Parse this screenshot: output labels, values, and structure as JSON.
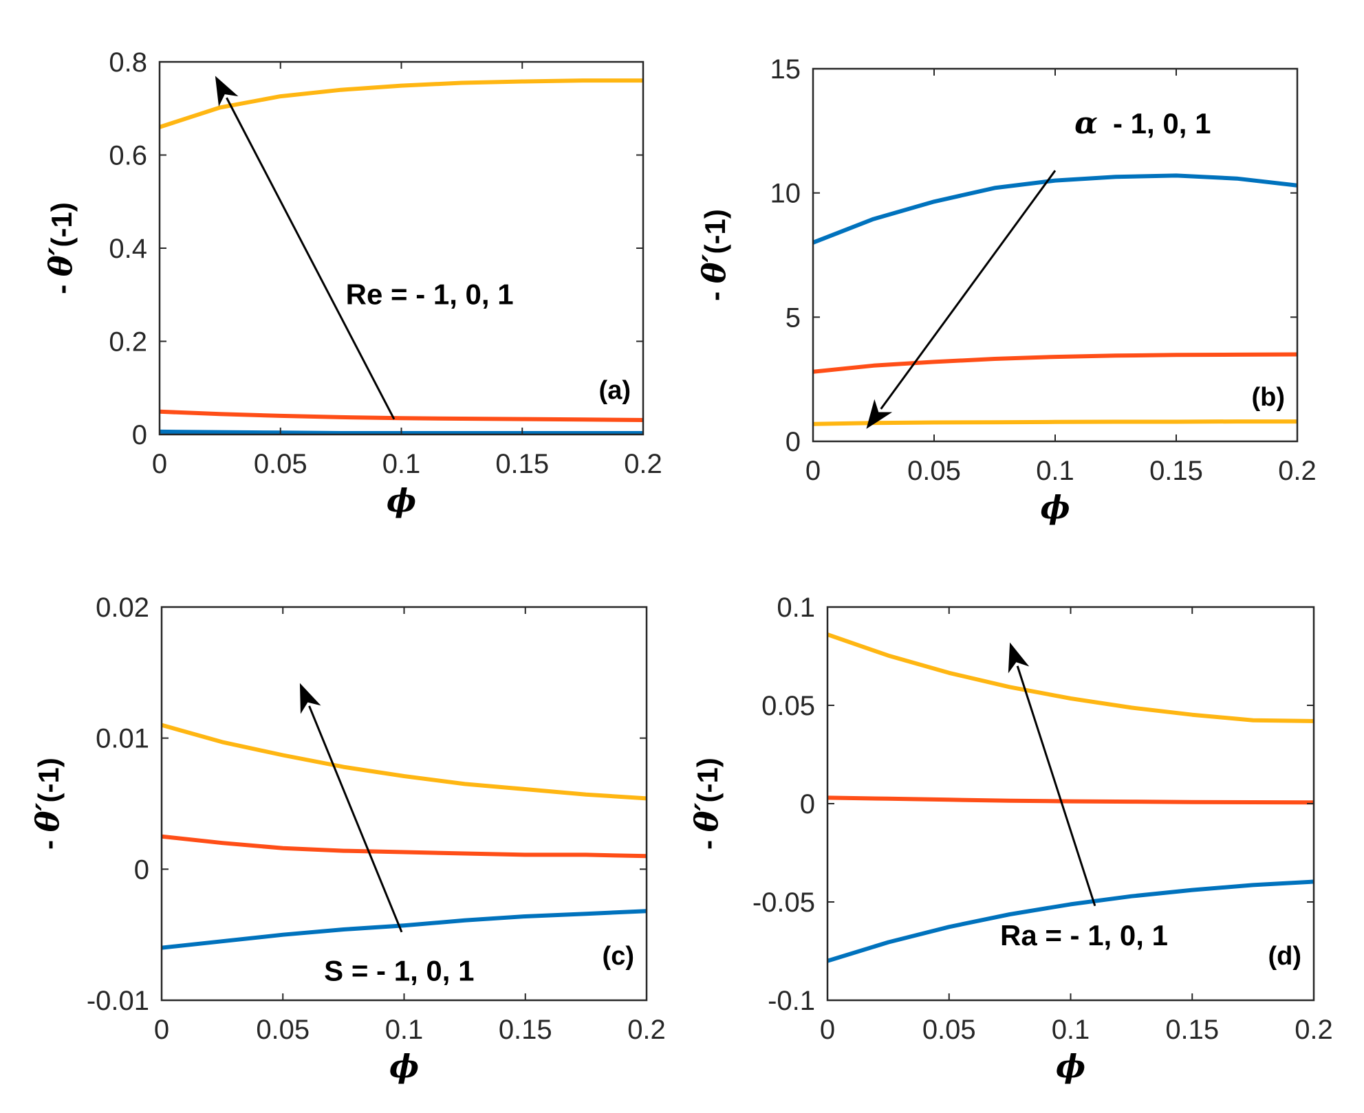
{
  "colors": {
    "series1": "#0072BD",
    "series2": "#FF4E17",
    "series3": "#FFB612"
  },
  "chart_data": [
    {
      "id": "a",
      "type": "line",
      "panel_label": "(a)",
      "xlabel": "ϕ",
      "ylabel_prefix": "- ",
      "ylabel_symbol": "θ′",
      "ylabel_suffix": "(-1)",
      "xlim": [
        0,
        0.2
      ],
      "ylim": [
        0,
        0.8
      ],
      "xticks": [
        0,
        0.05,
        0.1,
        0.15,
        0.2
      ],
      "xtick_labels": [
        "0",
        "0.05",
        "0.1",
        "0.15",
        "0.2"
      ],
      "yticks": [
        0,
        0.2,
        0.4,
        0.6,
        0.8
      ],
      "ytick_labels": [
        "0",
        "0.2",
        "0.4",
        "0.6",
        "0.8"
      ],
      "x": [
        0,
        0.025,
        0.05,
        0.075,
        0.1,
        0.125,
        0.15,
        0.175,
        0.2
      ],
      "series": [
        {
          "name": "Re = -1",
          "color": "series1",
          "values": [
            0.006,
            0.005,
            0.004,
            0.003,
            0.003,
            0.003,
            0.003,
            0.003,
            0.003
          ]
        },
        {
          "name": "Re = 0",
          "color": "series2",
          "values": [
            0.049,
            0.044,
            0.04,
            0.037,
            0.035,
            0.034,
            0.033,
            0.032,
            0.031
          ]
        },
        {
          "name": "Re = 1",
          "color": "series3",
          "values": [
            0.66,
            0.702,
            0.726,
            0.74,
            0.749,
            0.755,
            0.758,
            0.76,
            0.76
          ]
        }
      ],
      "annotation": {
        "text": "Re = - 1, 0, 1",
        "arrow": {
          "from": [
            0.097,
            0.033
          ],
          "to": [
            0.023,
            0.77
          ]
        },
        "text_pos": [
          0.077,
          0.28
        ]
      }
    },
    {
      "id": "b",
      "type": "line",
      "panel_label": "(b)",
      "xlabel": "ϕ",
      "ylabel_prefix": "- ",
      "ylabel_symbol": "θ′",
      "ylabel_suffix": "(-1)",
      "xlim": [
        0,
        0.2
      ],
      "ylim": [
        0,
        15
      ],
      "xticks": [
        0,
        0.05,
        0.1,
        0.15,
        0.2
      ],
      "xtick_labels": [
        "0",
        "0.05",
        "0.1",
        "0.15",
        "0.2"
      ],
      "yticks": [
        0,
        5,
        10,
        15
      ],
      "ytick_labels": [
        "0",
        "5",
        "10",
        "15"
      ],
      "x": [
        0,
        0.025,
        0.05,
        0.075,
        0.1,
        0.125,
        0.15,
        0.175,
        0.2
      ],
      "series": [
        {
          "name": "α = -1",
          "color": "series1",
          "values": [
            8.0,
            8.95,
            9.65,
            10.2,
            10.5,
            10.65,
            10.7,
            10.58,
            10.3
          ]
        },
        {
          "name": "α = 0",
          "color": "series2",
          "values": [
            2.8,
            3.05,
            3.2,
            3.32,
            3.4,
            3.45,
            3.48,
            3.49,
            3.5
          ]
        },
        {
          "name": "α = 1",
          "color": "series3",
          "values": [
            0.7,
            0.74,
            0.76,
            0.77,
            0.78,
            0.79,
            0.79,
            0.8,
            0.8
          ]
        }
      ],
      "annotation": {
        "symbol": "α",
        "text": "- 1, 0, 1",
        "arrow": {
          "from": [
            0.1,
            10.9
          ],
          "to": [
            0.022,
            0.5
          ]
        },
        "text_pos": [
          0.108,
          12.4
        ]
      }
    },
    {
      "id": "c",
      "type": "line",
      "panel_label": "(c)",
      "xlabel": "ϕ",
      "ylabel_prefix": "- ",
      "ylabel_symbol": "θ′",
      "ylabel_suffix": "(-1)",
      "xlim": [
        0,
        0.2
      ],
      "ylim": [
        -0.01,
        0.02
      ],
      "xticks": [
        0,
        0.05,
        0.1,
        0.15,
        0.2
      ],
      "xtick_labels": [
        "0",
        "0.05",
        "0.1",
        "0.15",
        "0.2"
      ],
      "yticks": [
        -0.01,
        0,
        0.01,
        0.02
      ],
      "ytick_labels": [
        "-0.01",
        "0",
        "0.01",
        "0.02"
      ],
      "x": [
        0,
        0.025,
        0.05,
        0.075,
        0.1,
        0.125,
        0.15,
        0.175,
        0.2
      ],
      "series": [
        {
          "name": "S = -1",
          "color": "series1",
          "values": [
            -0.006,
            -0.0055,
            -0.005,
            -0.0046,
            -0.0043,
            -0.0039,
            -0.0036,
            -0.0034,
            -0.0032
          ]
        },
        {
          "name": "S = 0",
          "color": "series2",
          "values": [
            0.0025,
            0.002,
            0.0016,
            0.0014,
            0.0013,
            0.0012,
            0.0011,
            0.0011,
            0.001
          ]
        },
        {
          "name": "S = 1",
          "color": "series3",
          "values": [
            0.011,
            0.0097,
            0.0087,
            0.0078,
            0.0071,
            0.0065,
            0.0061,
            0.0057,
            0.0054
          ]
        }
      ],
      "annotation": {
        "text": "S = - 1, 0, 1",
        "arrow": {
          "from": [
            0.099,
            -0.0048
          ],
          "to": [
            0.057,
            0.0142
          ]
        },
        "text_pos": [
          0.067,
          -0.0085
        ]
      }
    },
    {
      "id": "d",
      "type": "line",
      "panel_label": "(d)",
      "xlabel": "ϕ",
      "ylabel_prefix": "- ",
      "ylabel_symbol": "θ′",
      "ylabel_suffix": "(-1)",
      "xlim": [
        0,
        0.2
      ],
      "ylim": [
        -0.1,
        0.1
      ],
      "xticks": [
        0,
        0.05,
        0.1,
        0.15,
        0.2
      ],
      "xtick_labels": [
        "0",
        "0.05",
        "0.1",
        "0.15",
        "0.2"
      ],
      "yticks": [
        -0.1,
        -0.05,
        0,
        0.05,
        0.1
      ],
      "ytick_labels": [
        "-0.1",
        "-0.05",
        "0",
        "0.05",
        "0.1"
      ],
      "x": [
        0,
        0.025,
        0.05,
        0.075,
        0.1,
        0.125,
        0.15,
        0.175,
        0.2
      ],
      "series": [
        {
          "name": "Ra = -1",
          "color": "series1",
          "values": [
            -0.08,
            -0.0705,
            -0.0627,
            -0.0563,
            -0.0512,
            -0.0471,
            -0.0439,
            -0.0414,
            -0.0397
          ]
        },
        {
          "name": "Ra = 0",
          "color": "series2",
          "values": [
            0.003,
            0.0025,
            0.002,
            0.0015,
            0.0012,
            0.001,
            0.0008,
            0.0007,
            0.0006
          ]
        },
        {
          "name": "Ra = 1",
          "color": "series3",
          "values": [
            0.086,
            0.0753,
            0.0665,
            0.0593,
            0.0535,
            0.0488,
            0.0452,
            0.0424,
            0.042
          ]
        }
      ],
      "annotation": {
        "text": "Ra = - 1, 0, 1",
        "arrow": {
          "from": [
            0.11,
            -0.052
          ],
          "to": [
            0.075,
            0.082
          ]
        },
        "text_pos": [
          0.071,
          -0.072
        ]
      }
    }
  ]
}
